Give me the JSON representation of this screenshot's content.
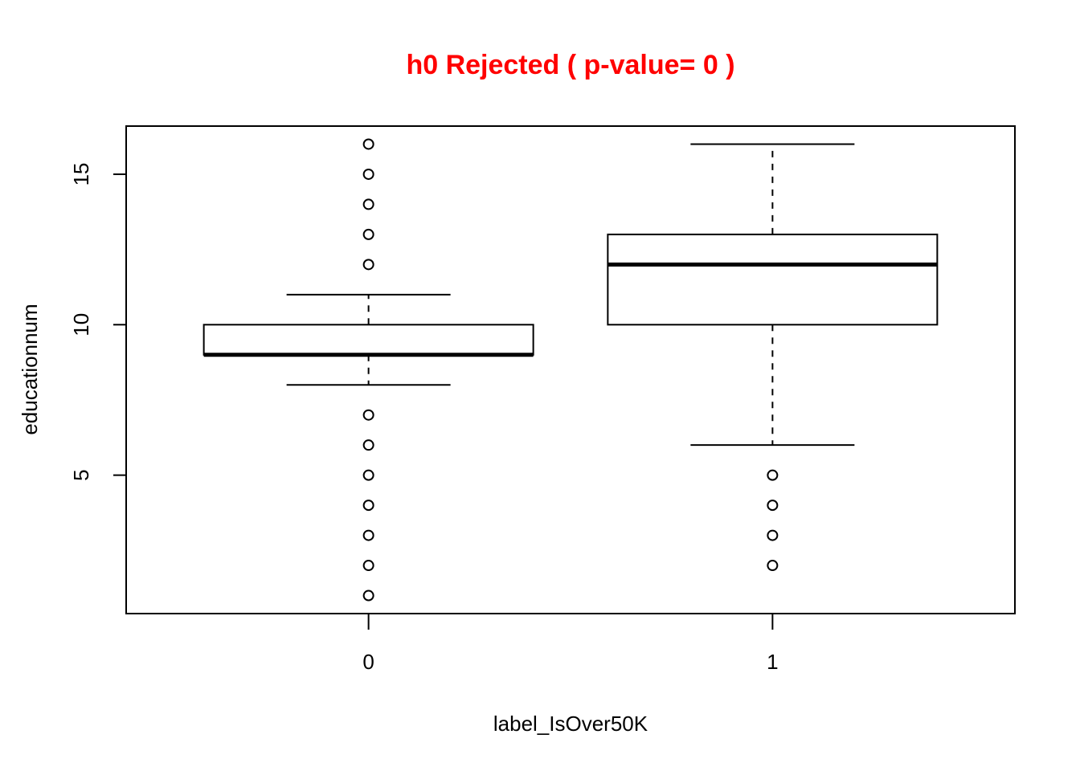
{
  "chart_data": {
    "type": "boxplot",
    "title": "h0 Rejected ( p-value= 0 )",
    "title_color": "#ff0000",
    "xlabel": "label_IsOver50K",
    "ylabel": "educationnum",
    "categories": [
      "0",
      "1"
    ],
    "ylim": [
      0.4,
      16.6
    ],
    "yticks": [
      5,
      10,
      15
    ],
    "boxes": [
      {
        "name": "0",
        "whisker_low": 8,
        "q1": 9,
        "median": 9,
        "q3": 10,
        "whisker_high": 11,
        "outliers": [
          1,
          2,
          3,
          4,
          5,
          6,
          7,
          12,
          13,
          14,
          15,
          16
        ]
      },
      {
        "name": "1",
        "whisker_low": 6,
        "q1": 10,
        "median": 12,
        "q3": 13,
        "whisker_high": 16,
        "outliers": [
          2,
          3,
          4,
          5
        ]
      }
    ],
    "grid": false,
    "legend": "none"
  }
}
